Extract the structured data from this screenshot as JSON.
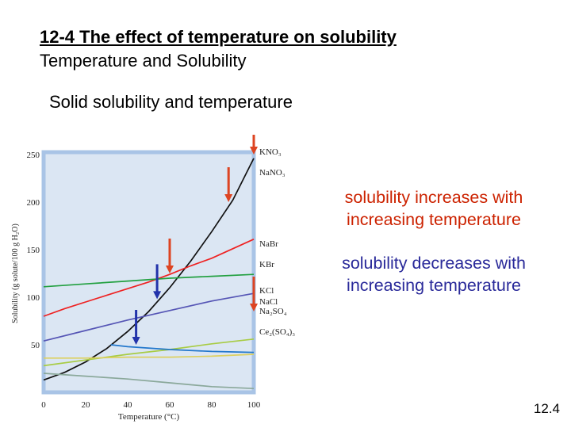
{
  "slide": {
    "title": "12-4 The effect of temperature on solubility",
    "subtitle": "Temperature and Solubility",
    "section_heading": "Solid solubility and temperature",
    "note_increase": "solubility increases with increasing temperature",
    "note_decrease": "solubility decreases with increasing temperature",
    "page_number": "12.4"
  },
  "colors": {
    "increase_text": "#cc2200",
    "decrease_text": "#2a2a9a",
    "plot_background": "#dbe6f3",
    "plot_border": "#a9c4e6"
  },
  "chart_data": {
    "type": "line",
    "xlabel": "Temperature (°C)",
    "ylabel": "Solubility (g solute/100 g H₂O)",
    "xlim": [
      0,
      100
    ],
    "ylim": [
      0,
      250
    ],
    "xticks": [
      0,
      20,
      40,
      60,
      80,
      100
    ],
    "yticks": [
      50,
      100,
      150,
      200,
      250
    ],
    "grid": false,
    "series": [
      {
        "name": "KNO₃",
        "color": "#111111",
        "x": [
          0,
          10,
          20,
          30,
          40,
          50,
          60,
          70,
          80,
          90,
          100
        ],
        "y": [
          13,
          21,
          32,
          46,
          64,
          85,
          110,
          138,
          169,
          202,
          246
        ]
      },
      {
        "name": "NaNO₃",
        "color": "#ee2222",
        "x": [
          0,
          10,
          20,
          30,
          40,
          50,
          60,
          70,
          80,
          90,
          100
        ],
        "y": [
          80,
          88,
          95,
          102,
          109,
          116,
          124,
          133,
          141,
          151,
          161
        ]
      },
      {
        "name": "NaBr",
        "color": "#22a040",
        "x": [
          0,
          20,
          40,
          60,
          80,
          100
        ],
        "y": [
          111,
          114,
          117,
          120,
          122,
          124
        ]
      },
      {
        "name": "KBr",
        "color": "#5555b5",
        "x": [
          0,
          20,
          40,
          60,
          80,
          100
        ],
        "y": [
          54,
          65,
          76,
          86,
          96,
          104
        ]
      },
      {
        "name": "KCl",
        "color": "#a8cc44",
        "x": [
          0,
          20,
          40,
          60,
          80,
          100
        ],
        "y": [
          28,
          34,
          40,
          45,
          51,
          56
        ]
      },
      {
        "name": "NaCl",
        "color": "#ddd060",
        "x": [
          0,
          20,
          40,
          60,
          80,
          100
        ],
        "y": [
          36,
          36,
          37,
          37,
          38,
          40
        ]
      },
      {
        "name": "Na₂SO₄",
        "color": "#2277cc",
        "x": [
          32,
          40,
          60,
          80,
          100
        ],
        "y": [
          50,
          48,
          45,
          43,
          42
        ]
      },
      {
        "name": "Ce₂(SO₄)₃",
        "color": "#8aa89a",
        "x": [
          0,
          20,
          40,
          60,
          80,
          100
        ],
        "y": [
          20,
          17,
          14,
          10,
          6,
          4
        ]
      }
    ],
    "legend_labels": [
      "KNO₃",
      "NaNO₃",
      "NaBr",
      "KBr",
      "KCl",
      "NaCl",
      "Na₂SO₄",
      "Ce₂(SO₄)₃"
    ],
    "annotations": [
      {
        "label": "increase",
        "x": 100,
        "y": 250,
        "color": "#dd4422"
      },
      {
        "label": "increase",
        "x": 88,
        "y": 200,
        "color": "#dd4422"
      },
      {
        "label": "increase",
        "x": 60,
        "y": 125,
        "color": "#dd4422"
      },
      {
        "label": "decrease",
        "x": 54,
        "y": 98,
        "color": "#2233aa"
      },
      {
        "label": "decrease",
        "x": 44,
        "y": 50,
        "color": "#2233aa"
      },
      {
        "label": "increase",
        "x": 100,
        "y": 85,
        "color": "#dd4422"
      }
    ]
  }
}
